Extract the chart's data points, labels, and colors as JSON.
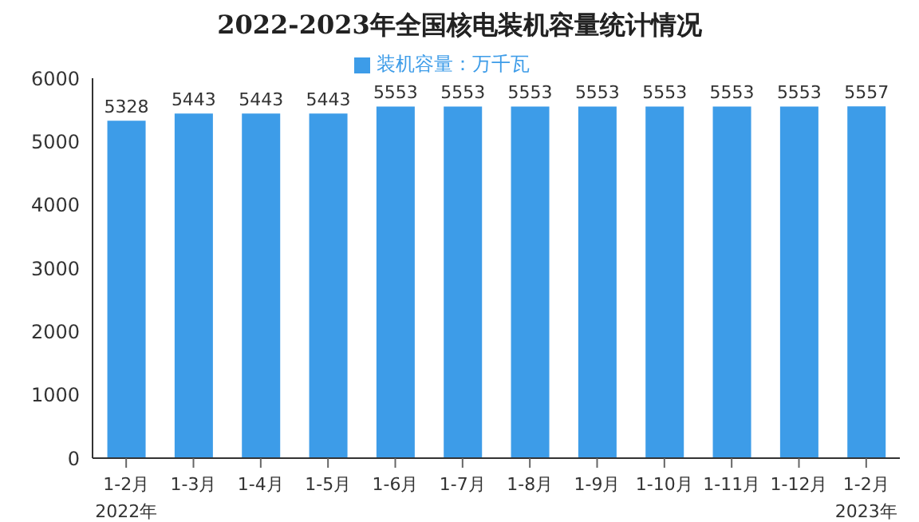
{
  "chart_data": {
    "type": "bar",
    "title": "2022-2023年全国核电装机容量统计情况",
    "categories": [
      "1-2月\n2022年",
      "1-3月",
      "1-4月",
      "1-5月",
      "1-6月",
      "1-7月",
      "1-8月",
      "1-9月",
      "1-10月",
      "1-11月",
      "1-12月",
      "1-2月\n2023年"
    ],
    "series": [
      {
        "name": "装机容量：万千瓦",
        "color": "#3d9ce8",
        "values": [
          5328,
          5443,
          5443,
          5443,
          5553,
          5553,
          5553,
          5553,
          5553,
          5553,
          5553,
          5557
        ]
      }
    ],
    "ylim": [
      0,
      6000
    ],
    "yticks": [
      0,
      1000,
      2000,
      3000,
      4000,
      5000,
      6000
    ],
    "data_labels": true,
    "legend": "top",
    "grid": false
  }
}
